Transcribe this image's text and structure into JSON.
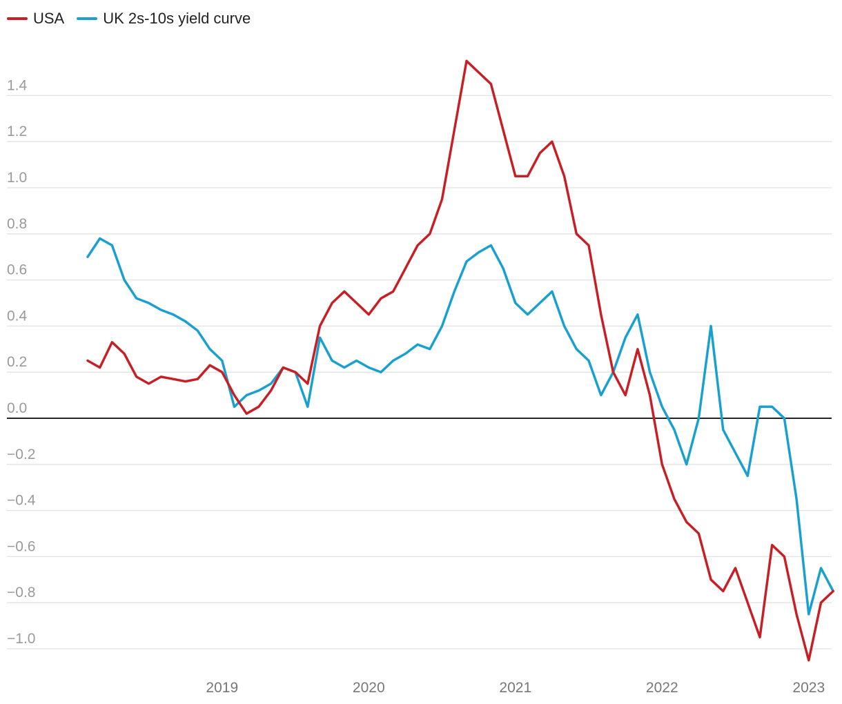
{
  "chart_data": {
    "type": "line",
    "title": "",
    "xlabel": "",
    "ylabel": "",
    "x_range": [
      "2018-08",
      "2023-09"
    ],
    "ylim": [
      -1.1,
      1.6
    ],
    "y_ticks": [
      1.4,
      1.2,
      1.0,
      0.8,
      0.6,
      0.4,
      0.2,
      0.0,
      -0.2,
      -0.4,
      -0.6,
      -0.8,
      -1.0
    ],
    "y_tick_labels": [
      "1.4",
      "1.2",
      "1.0",
      "0.8",
      "0.6",
      "0.4",
      "0.2",
      "0.0",
      "−0.2",
      "−0.4",
      "−0.6",
      "−0.8",
      "−1.0"
    ],
    "x_ticks": [
      "2019",
      "2020",
      "2021",
      "2022",
      "2023"
    ],
    "grid": true,
    "zero_line": true,
    "legend_position": "top-left",
    "series": [
      {
        "name": "USA",
        "color": "#c62026",
        "points": [
          [
            "2018-08",
            0.25
          ],
          [
            "2018-09",
            0.22
          ],
          [
            "2018-10",
            0.33
          ],
          [
            "2018-11",
            0.28
          ],
          [
            "2018-12",
            0.18
          ],
          [
            "2019-01",
            0.15
          ],
          [
            "2019-02",
            0.18
          ],
          [
            "2019-03",
            0.17
          ],
          [
            "2019-04",
            0.16
          ],
          [
            "2019-05",
            0.17
          ],
          [
            "2019-06",
            0.23
          ],
          [
            "2019-07",
            0.2
          ],
          [
            "2019-08",
            0.1
          ],
          [
            "2019-09",
            0.02
          ],
          [
            "2019-10",
            0.05
          ],
          [
            "2019-11",
            0.12
          ],
          [
            "2019-12",
            0.22
          ],
          [
            "2020-01",
            0.2
          ],
          [
            "2020-02",
            0.15
          ],
          [
            "2020-03",
            0.4
          ],
          [
            "2020-04",
            0.5
          ],
          [
            "2020-05",
            0.55
          ],
          [
            "2020-06",
            0.5
          ],
          [
            "2020-07",
            0.45
          ],
          [
            "2020-08",
            0.52
          ],
          [
            "2020-09",
            0.55
          ],
          [
            "2020-10",
            0.65
          ],
          [
            "2020-11",
            0.75
          ],
          [
            "2020-12",
            0.8
          ],
          [
            "2021-01",
            0.95
          ],
          [
            "2021-02",
            1.25
          ],
          [
            "2021-03",
            1.55
          ],
          [
            "2021-04",
            1.5
          ],
          [
            "2021-05",
            1.45
          ],
          [
            "2021-06",
            1.25
          ],
          [
            "2021-07",
            1.05
          ],
          [
            "2021-08",
            1.05
          ],
          [
            "2021-09",
            1.15
          ],
          [
            "2021-10",
            1.2
          ],
          [
            "2021-11",
            1.05
          ],
          [
            "2021-12",
            0.8
          ],
          [
            "2022-01",
            0.75
          ],
          [
            "2022-02",
            0.45
          ],
          [
            "2022-03",
            0.2
          ],
          [
            "2022-04",
            0.1
          ],
          [
            "2022-05",
            0.3
          ],
          [
            "2022-06",
            0.1
          ],
          [
            "2022-07",
            -0.2
          ],
          [
            "2022-08",
            -0.35
          ],
          [
            "2022-09",
            -0.45
          ],
          [
            "2022-10",
            -0.5
          ],
          [
            "2022-11",
            -0.7
          ],
          [
            "2022-12",
            -0.75
          ],
          [
            "2023-01",
            -0.65
          ],
          [
            "2023-02",
            -0.8
          ],
          [
            "2023-03",
            -0.95
          ],
          [
            "2023-04",
            -0.55
          ],
          [
            "2023-05",
            -0.6
          ],
          [
            "2023-06",
            -0.85
          ],
          [
            "2023-07",
            -1.05
          ],
          [
            "2023-08",
            -0.8
          ],
          [
            "2023-09",
            -0.75
          ]
        ]
      },
      {
        "name": "UK 2s-10s yield curve",
        "color": "#1aa0d0",
        "points": [
          [
            "2018-08",
            0.7
          ],
          [
            "2018-09",
            0.78
          ],
          [
            "2018-10",
            0.75
          ],
          [
            "2018-11",
            0.6
          ],
          [
            "2018-12",
            0.52
          ],
          [
            "2019-01",
            0.5
          ],
          [
            "2019-02",
            0.47
          ],
          [
            "2019-03",
            0.45
          ],
          [
            "2019-04",
            0.42
          ],
          [
            "2019-05",
            0.38
          ],
          [
            "2019-06",
            0.3
          ],
          [
            "2019-07",
            0.25
          ],
          [
            "2019-08",
            0.05
          ],
          [
            "2019-09",
            0.1
          ],
          [
            "2019-10",
            0.12
          ],
          [
            "2019-11",
            0.15
          ],
          [
            "2019-12",
            0.22
          ],
          [
            "2020-01",
            0.2
          ],
          [
            "2020-02",
            0.05
          ],
          [
            "2020-03",
            0.35
          ],
          [
            "2020-04",
            0.25
          ],
          [
            "2020-05",
            0.22
          ],
          [
            "2020-06",
            0.25
          ],
          [
            "2020-07",
            0.22
          ],
          [
            "2020-08",
            0.2
          ],
          [
            "2020-09",
            0.25
          ],
          [
            "2020-10",
            0.28
          ],
          [
            "2020-11",
            0.32
          ],
          [
            "2020-12",
            0.3
          ],
          [
            "2021-01",
            0.4
          ],
          [
            "2021-02",
            0.55
          ],
          [
            "2021-03",
            0.68
          ],
          [
            "2021-04",
            0.72
          ],
          [
            "2021-05",
            0.75
          ],
          [
            "2021-06",
            0.65
          ],
          [
            "2021-07",
            0.5
          ],
          [
            "2021-08",
            0.45
          ],
          [
            "2021-09",
            0.5
          ],
          [
            "2021-10",
            0.55
          ],
          [
            "2021-11",
            0.4
          ],
          [
            "2021-12",
            0.3
          ],
          [
            "2022-01",
            0.25
          ],
          [
            "2022-02",
            0.1
          ],
          [
            "2022-03",
            0.2
          ],
          [
            "2022-04",
            0.35
          ],
          [
            "2022-05",
            0.45
          ],
          [
            "2022-06",
            0.2
          ],
          [
            "2022-07",
            0.05
          ],
          [
            "2022-08",
            -0.05
          ],
          [
            "2022-09",
            -0.2
          ],
          [
            "2022-10",
            0.0
          ],
          [
            "2022-11",
            0.4
          ],
          [
            "2022-12",
            -0.05
          ],
          [
            "2023-01",
            -0.15
          ],
          [
            "2023-02",
            -0.25
          ],
          [
            "2023-03",
            0.05
          ],
          [
            "2023-04",
            0.05
          ],
          [
            "2023-05",
            0.0
          ],
          [
            "2023-06",
            -0.35
          ],
          [
            "2023-07",
            -0.85
          ],
          [
            "2023-08",
            -0.65
          ],
          [
            "2023-09",
            -0.75
          ]
        ]
      }
    ]
  }
}
